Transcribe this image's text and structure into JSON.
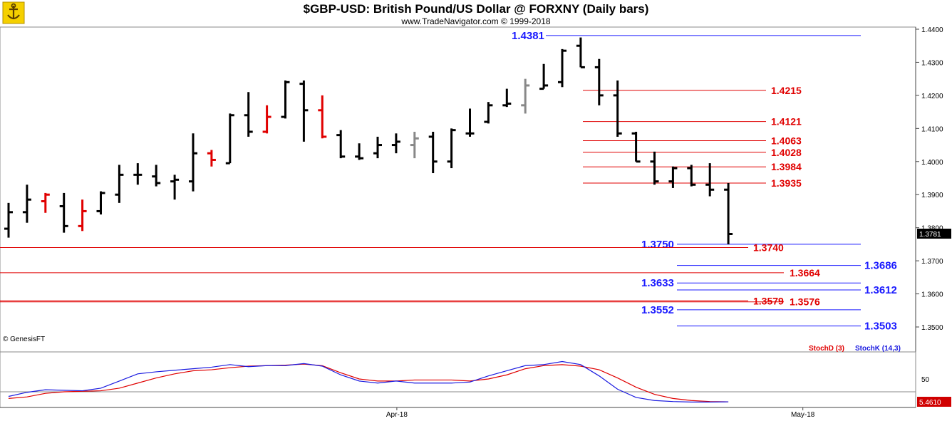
{
  "header": {
    "title": "$GBP-USD:  British Pound/US Dollar @ FORXNY  (Daily bars)",
    "subtitle": "www.TradeNavigator.com © 1999-2018",
    "logo_icon": "anchor-icon"
  },
  "copyright": "© GenesisFT",
  "colors": {
    "bar_default": "#000000",
    "bar_red": "#e00000",
    "bar_gray": "#888888",
    "level_red": "#e00000",
    "level_blue": "#1a1aff",
    "stoch_d": "#e00000",
    "stoch_k": "#1a1ae0"
  },
  "chart_data": [
    {
      "type": "ohlc",
      "ylim": [
        1.345,
        1.446
      ],
      "yticks": [
        "1.4400",
        "1.4300",
        "1.4200",
        "1.4100",
        "1.4000",
        "1.3900",
        "1.3800",
        "1.3700",
        "1.3600",
        "1.3500"
      ],
      "ytick_values": [
        1.44,
        1.43,
        1.42,
        1.41,
        1.4,
        1.39,
        1.38,
        1.37,
        1.36,
        1.35
      ],
      "xticks": [
        {
          "label": "Apr-18",
          "index": 21
        },
        {
          "label": "May-18",
          "index": 43
        }
      ],
      "last_price": "1.3781",
      "bars": [
        {
          "o": 1.3797,
          "h": 1.3875,
          "l": 1.377,
          "c": 1.3847,
          "color": "black"
        },
        {
          "o": 1.3847,
          "h": 1.393,
          "l": 1.3815,
          "c": 1.3885,
          "color": "black"
        },
        {
          "o": 1.388,
          "h": 1.3905,
          "l": 1.3845,
          "c": 1.39,
          "color": "red"
        },
        {
          "o": 1.3865,
          "h": 1.3905,
          "l": 1.3785,
          "c": 1.3805,
          "color": "black"
        },
        {
          "o": 1.3805,
          "h": 1.3885,
          "l": 1.379,
          "c": 1.385,
          "color": "red"
        },
        {
          "o": 1.385,
          "h": 1.391,
          "l": 1.384,
          "c": 1.3905,
          "color": "black"
        },
        {
          "o": 1.39,
          "h": 1.399,
          "l": 1.3875,
          "c": 1.396,
          "color": "black"
        },
        {
          "o": 1.396,
          "h": 1.3995,
          "l": 1.393,
          "c": 1.396,
          "color": "black"
        },
        {
          "o": 1.3955,
          "h": 1.399,
          "l": 1.3925,
          "c": 1.3935,
          "color": "black"
        },
        {
          "o": 1.394,
          "h": 1.396,
          "l": 1.3885,
          "c": 1.3945,
          "color": "black"
        },
        {
          "o": 1.394,
          "h": 1.4085,
          "l": 1.391,
          "c": 1.4025,
          "color": "black"
        },
        {
          "o": 1.4025,
          "h": 1.4035,
          "l": 1.3985,
          "c": 1.4005,
          "color": "red"
        },
        {
          "o": 1.3995,
          "h": 1.4145,
          "l": 1.3995,
          "c": 1.414,
          "color": "black"
        },
        {
          "o": 1.414,
          "h": 1.421,
          "l": 1.4075,
          "c": 1.409,
          "color": "black"
        },
        {
          "o": 1.409,
          "h": 1.417,
          "l": 1.4085,
          "c": 1.4135,
          "color": "red"
        },
        {
          "o": 1.4135,
          "h": 1.4245,
          "l": 1.413,
          "c": 1.424,
          "color": "black"
        },
        {
          "o": 1.4235,
          "h": 1.4245,
          "l": 1.406,
          "c": 1.4155,
          "color": "black"
        },
        {
          "o": 1.4155,
          "h": 1.42,
          "l": 1.407,
          "c": 1.4075,
          "color": "red"
        },
        {
          "o": 1.408,
          "h": 1.4095,
          "l": 1.401,
          "c": 1.4015,
          "color": "black"
        },
        {
          "o": 1.4015,
          "h": 1.4055,
          "l": 1.4005,
          "c": 1.401,
          "color": "black"
        },
        {
          "o": 1.4025,
          "h": 1.4075,
          "l": 1.401,
          "c": 1.405,
          "color": "black"
        },
        {
          "o": 1.405,
          "h": 1.4085,
          "l": 1.4025,
          "c": 1.406,
          "color": "black"
        },
        {
          "o": 1.405,
          "h": 1.409,
          "l": 1.401,
          "c": 1.407,
          "color": "gray"
        },
        {
          "o": 1.4075,
          "h": 1.409,
          "l": 1.3965,
          "c": 1.4,
          "color": "black"
        },
        {
          "o": 1.4,
          "h": 1.41,
          "l": 1.398,
          "c": 1.4095,
          "color": "black"
        },
        {
          "o": 1.4085,
          "h": 1.416,
          "l": 1.4075,
          "c": 1.4085,
          "color": "black"
        },
        {
          "o": 1.412,
          "h": 1.418,
          "l": 1.4115,
          "c": 1.417,
          "color": "black"
        },
        {
          "o": 1.417,
          "h": 1.422,
          "l": 1.4165,
          "c": 1.4175,
          "color": "black"
        },
        {
          "o": 1.417,
          "h": 1.425,
          "l": 1.4145,
          "c": 1.423,
          "color": "gray"
        },
        {
          "o": 1.422,
          "h": 1.4295,
          "l": 1.422,
          "c": 1.423,
          "color": "black"
        },
        {
          "o": 1.424,
          "h": 1.434,
          "l": 1.4225,
          "c": 1.4335,
          "color": "black"
        },
        {
          "o": 1.435,
          "h": 1.4375,
          "l": 1.4285,
          "c": 1.4285,
          "color": "black"
        },
        {
          "o": 1.4285,
          "h": 1.431,
          "l": 1.417,
          "c": 1.42,
          "color": "black"
        },
        {
          "o": 1.42,
          "h": 1.4245,
          "l": 1.4075,
          "c": 1.4085,
          "color": "black"
        },
        {
          "o": 1.4085,
          "h": 1.409,
          "l": 1.4,
          "c": 1.4,
          "color": "black"
        },
        {
          "o": 1.4,
          "h": 1.403,
          "l": 1.393,
          "c": 1.394,
          "color": "black"
        },
        {
          "o": 1.394,
          "h": 1.3985,
          "l": 1.392,
          "c": 1.398,
          "color": "black"
        },
        {
          "o": 1.398,
          "h": 1.399,
          "l": 1.3925,
          "c": 1.393,
          "color": "black"
        },
        {
          "o": 1.393,
          "h": 1.3995,
          "l": 1.3895,
          "c": 1.3915,
          "color": "black"
        },
        {
          "o": 1.3915,
          "h": 1.3935,
          "l": 1.375,
          "c": 1.3781,
          "color": "black"
        }
      ],
      "levels": [
        {
          "value": 1.4381,
          "label": "1.4381",
          "color": "blue",
          "label_pos": "left"
        },
        {
          "value": 1.4215,
          "label": "1.4215",
          "color": "red",
          "label_pos": "right"
        },
        {
          "value": 1.4121,
          "label": "1.4121",
          "color": "red",
          "label_pos": "right"
        },
        {
          "value": 1.4063,
          "label": "1.4063",
          "color": "red",
          "label_pos": "right"
        },
        {
          "value": 1.4028,
          "label": "1.4028",
          "color": "red",
          "label_pos": "right"
        },
        {
          "value": 1.3984,
          "label": "1.3984",
          "color": "red",
          "label_pos": "right"
        },
        {
          "value": 1.3935,
          "label": "1.3935",
          "color": "red",
          "label_pos": "right"
        },
        {
          "value": 1.375,
          "label": "1.3750",
          "color": "blue",
          "label_pos": "left"
        },
        {
          "value": 1.374,
          "label": "1.3740",
          "color": "red",
          "label_pos": "right"
        },
        {
          "value": 1.3686,
          "label": "1.3686",
          "color": "blue",
          "label_pos": "right"
        },
        {
          "value": 1.3664,
          "label": "1.3664",
          "color": "red",
          "label_pos": "right"
        },
        {
          "value": 1.3633,
          "label": "1.3633",
          "color": "blue",
          "label_pos": "left"
        },
        {
          "value": 1.3612,
          "label": "1.3612",
          "color": "blue",
          "label_pos": "right"
        },
        {
          "value": 1.3579,
          "label": "1.3579",
          "color": "red",
          "label_pos": "right"
        },
        {
          "value": 1.3576,
          "label": "1.3576",
          "color": "red",
          "label_pos": "right"
        },
        {
          "value": 1.3552,
          "label": "1.3552",
          "color": "blue",
          "label_pos": "left"
        },
        {
          "value": 1.3503,
          "label": "1.3503",
          "color": "blue",
          "label_pos": "right"
        }
      ]
    },
    {
      "type": "line",
      "indicator": "stochastic",
      "ylim": [
        0,
        100
      ],
      "yticks": [
        "50"
      ],
      "last_value": "5.4610",
      "series": [
        {
          "name": "StochD (3)",
          "color": "red",
          "values": [
            12,
            15,
            22,
            25,
            26,
            27,
            32,
            42,
            52,
            60,
            66,
            68,
            72,
            75,
            76,
            77,
            79,
            76,
            62,
            50,
            46,
            46,
            48,
            48,
            48,
            46,
            50,
            58,
            70,
            76,
            78,
            75,
            68,
            52,
            34,
            20,
            12,
            8,
            6,
            5.461
          ]
        },
        {
          "name": "StochK (14,3)",
          "color": "blue",
          "values": [
            16,
            24,
            29,
            28,
            27,
            32,
            46,
            60,
            64,
            67,
            70,
            73,
            78,
            74,
            76,
            76,
            80,
            75,
            58,
            46,
            42,
            46,
            42,
            42,
            42,
            44,
            56,
            66,
            76,
            78,
            84,
            78,
            56,
            30,
            14,
            8,
            6,
            5,
            5,
            5.461
          ]
        }
      ]
    }
  ]
}
